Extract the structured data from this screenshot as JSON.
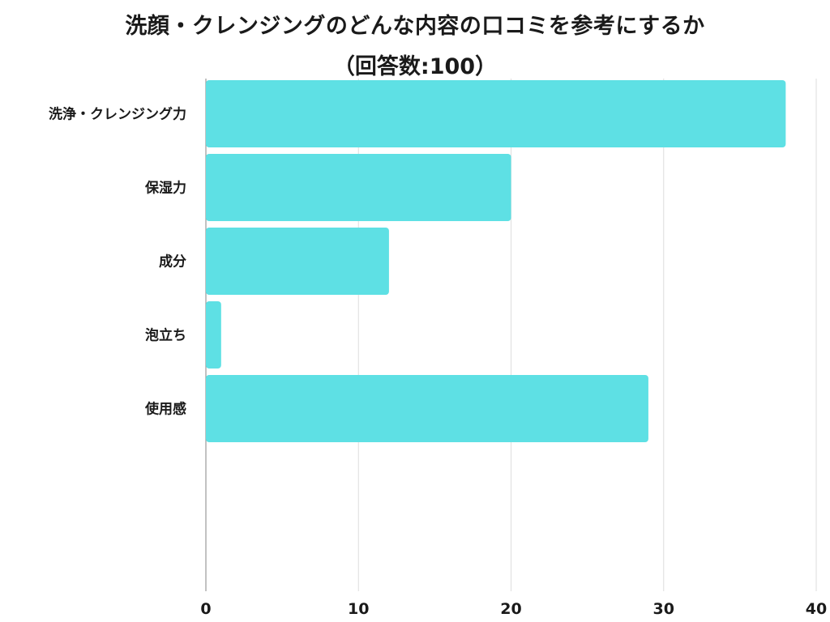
{
  "chart_data": {
    "type": "bar",
    "orientation": "horizontal",
    "title": "洗顔・クレンジングのどんな内容の口コミを参考にするか",
    "subtitle": "（回答数:100）",
    "categories": [
      "洗浄・クレンジング力",
      "保湿力",
      "成分",
      "泡立ち",
      "使用感"
    ],
    "values": [
      38,
      20,
      12,
      1,
      29
    ],
    "xlim": [
      0,
      40
    ],
    "xticks": [
      "0",
      "10",
      "20",
      "30",
      "40"
    ],
    "grid": true,
    "bar_color": "#5ee0e4"
  }
}
